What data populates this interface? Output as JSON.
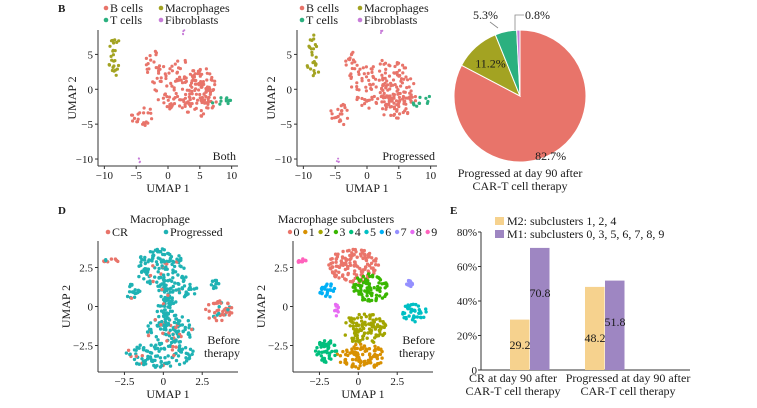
{
  "panels": {
    "B": {
      "letter": "B",
      "legend": [
        {
          "label": "B cells",
          "color": "#E8746A"
        },
        {
          "label": "T cells",
          "color": "#2BB07F"
        },
        {
          "label": "Macrophages",
          "color": "#A3A322"
        },
        {
          "label": "Fibroblasts",
          "color": "#C77CD8"
        }
      ]
    },
    "D": {
      "letter": "D",
      "title": "Macrophage",
      "legend": [
        {
          "label": "CR",
          "color": "#E8746A"
        },
        {
          "label": "Progressed",
          "color": "#1FB2B4"
        }
      ]
    },
    "D2": {
      "title": "Macrophage subclusters",
      "legend": [
        {
          "label": "0",
          "color": "#EA756A"
        },
        {
          "label": "1",
          "color": "#D89000"
        },
        {
          "label": "2",
          "color": "#A3A500"
        },
        {
          "label": "3",
          "color": "#39B600"
        },
        {
          "label": "4",
          "color": "#00BF7D"
        },
        {
          "label": "5",
          "color": "#00BFC4"
        },
        {
          "label": "6",
          "color": "#00B0F6"
        },
        {
          "label": "7",
          "color": "#9590FF"
        },
        {
          "label": "8",
          "color": "#E76BF3"
        },
        {
          "label": "9",
          "color": "#FF62BC"
        }
      ]
    },
    "E": {
      "letter": "E"
    }
  },
  "chart_data": [
    {
      "type": "scatter",
      "id": "umap-both",
      "title": "",
      "annotation": "Both",
      "xlabel": "UMAP 1",
      "ylabel": "UMAP 2",
      "xlim": [
        -11,
        11
      ],
      "ylim": [
        -11,
        8.5
      ],
      "xticks": [
        -10,
        -5,
        0,
        5,
        10
      ],
      "yticks": [
        -10,
        -5,
        0,
        5
      ],
      "xtick_labels": [
        "−10",
        "−5",
        "0",
        "5",
        "10"
      ],
      "ytick_labels": [
        "−10",
        "−5",
        "0",
        "5"
      ],
      "clusters": [
        {
          "name": "Macrophages",
          "color": "#A3A322",
          "blobs": [
            {
              "cx": -8.4,
              "cy": 6.3,
              "rx": 0.9,
              "ry": 1.5
            },
            {
              "cx": -8.5,
              "cy": 2.8,
              "rx": 1.2,
              "ry": 1.0
            },
            {
              "cx": -8.5,
              "cy": 4.5,
              "rx": 0.6,
              "ry": 1.2
            }
          ]
        },
        {
          "name": "B cells",
          "color": "#E8746A",
          "blobs": [
            {
              "cx": 2.5,
              "cy": 0.5,
              "rx": 5.0,
              "ry": 3.8
            },
            {
              "cx": -2.3,
              "cy": 3.5,
              "rx": 1.3,
              "ry": 2.0
            },
            {
              "cx": 4.5,
              "cy": -1.5,
              "rx": 3.2,
              "ry": 2.8
            },
            {
              "cx": -4.2,
              "cy": -3.8,
              "rx": 1.7,
              "ry": 1.7
            }
          ]
        },
        {
          "name": "T cells",
          "color": "#2BB07F",
          "blobs": [
            {
              "cx": 8.3,
              "cy": -1.8,
              "rx": 1.6,
              "ry": 0.8
            },
            {
              "cx": 9.5,
              "cy": -1.3,
              "rx": 0.6,
              "ry": 0.4
            }
          ]
        },
        {
          "name": "Fibroblasts",
          "color": "#C77CD8",
          "blobs": [
            {
              "cx": 2.4,
              "cy": 8.2,
              "rx": 0.25,
              "ry": 0.35
            },
            {
              "cx": -4.5,
              "cy": -10.2,
              "rx": 0.25,
              "ry": 0.4
            }
          ]
        }
      ]
    },
    {
      "type": "scatter",
      "id": "umap-progressed",
      "title": "",
      "annotation": "Progressed",
      "xlabel": "UMAP 1",
      "ylabel": "UMAP 2",
      "xlim": [
        -11,
        11
      ],
      "ylim": [
        -11,
        8.5
      ],
      "xticks": [
        -10,
        -5,
        0,
        5,
        10
      ],
      "yticks": [
        -10,
        -5,
        0,
        5
      ],
      "xtick_labels": [
        "−10",
        "−5",
        "0",
        "5",
        "10"
      ],
      "ytick_labels": [
        "−10",
        "−5",
        "0",
        "5"
      ],
      "clusters": [
        {
          "name": "Macrophages",
          "color": "#A3A322",
          "blobs": [
            {
              "cx": -8.4,
              "cy": 6.3,
              "rx": 0.9,
              "ry": 1.5
            },
            {
              "cx": -8.5,
              "cy": 2.8,
              "rx": 1.2,
              "ry": 1.0
            },
            {
              "cx": -8.5,
              "cy": 4.5,
              "rx": 0.6,
              "ry": 1.2
            }
          ]
        },
        {
          "name": "B cells",
          "color": "#E8746A",
          "blobs": [
            {
              "cx": 2.5,
              "cy": 0.5,
              "rx": 5.0,
              "ry": 3.8
            },
            {
              "cx": -2.3,
              "cy": 3.5,
              "rx": 1.3,
              "ry": 2.0
            },
            {
              "cx": 4.5,
              "cy": -1.5,
              "rx": 3.2,
              "ry": 2.8
            },
            {
              "cx": -4.2,
              "cy": -3.8,
              "rx": 1.7,
              "ry": 1.7
            }
          ]
        },
        {
          "name": "T cells",
          "color": "#2BB07F",
          "blobs": [
            {
              "cx": 8.3,
              "cy": -1.8,
              "rx": 1.6,
              "ry": 0.8
            },
            {
              "cx": 9.5,
              "cy": -1.3,
              "rx": 0.6,
              "ry": 0.4
            }
          ]
        },
        {
          "name": "Fibroblasts",
          "color": "#C77CD8",
          "blobs": [
            {
              "cx": 2.4,
              "cy": 8.2,
              "rx": 0.25,
              "ry": 0.35
            },
            {
              "cx": -4.5,
              "cy": -10.2,
              "rx": 0.25,
              "ry": 0.4
            }
          ]
        }
      ]
    },
    {
      "type": "pie",
      "id": "pie-progressed",
      "title": "Progressed at day 90 after CAR-T cell therapy",
      "caption_lines": [
        "Progressed at day 90 after",
        "CAR-T cell therapy"
      ],
      "slices": [
        {
          "label": "B cells",
          "value": 82.7,
          "text": "82.7%",
          "color": "#E8746A"
        },
        {
          "label": "Macrophages",
          "value": 11.2,
          "text": "11.2%",
          "color": "#A3A322"
        },
        {
          "label": "T cells",
          "value": 5.3,
          "text": "5.3%",
          "color": "#2BB07F"
        },
        {
          "label": "Fibroblasts",
          "value": 0.8,
          "text": "0.8%",
          "color": "#C77CD8"
        }
      ]
    },
    {
      "type": "scatter",
      "id": "umap-macrophage",
      "annotation": "Before therapy",
      "annotation_lines": [
        "Before",
        "therapy"
      ],
      "xlabel": "UMAP 1",
      "ylabel": "UMAP 2",
      "xlim": [
        -4.2,
        4.8
      ],
      "ylim": [
        -4.2,
        4.2
      ],
      "xticks": [
        -2.5,
        0,
        2.5
      ],
      "yticks": [
        -2.5,
        0,
        2.5
      ],
      "xtick_labels": [
        "−2.5",
        "0",
        "2.5"
      ],
      "ytick_labels": [
        "−2.5",
        "0",
        "2.5"
      ],
      "groups": [
        {
          "name": "Progressed",
          "color": "#1FB2B4"
        },
        {
          "name": "CR",
          "color": "#E8746A"
        }
      ]
    },
    {
      "type": "scatter",
      "id": "umap-subclusters",
      "annotation": "Before therapy",
      "annotation_lines": [
        "Before",
        "therapy"
      ],
      "xlabel": "UMAP 1",
      "ylabel": "UMAP 2",
      "xlim": [
        -4.2,
        4.8
      ],
      "ylim": [
        -4.2,
        4.2
      ],
      "xticks": [
        -2.5,
        0,
        2.5
      ],
      "yticks": [
        -2.5,
        0,
        2.5
      ],
      "xtick_labels": [
        "−2.5",
        "0",
        "2.5"
      ],
      "ytick_labels": [
        "−2.5",
        "0",
        "2.5"
      ],
      "subclusters": [
        {
          "id": "0",
          "color": "#EA756A",
          "cx": -0.3,
          "cy": 2.6,
          "rx": 1.6,
          "ry": 1.1
        },
        {
          "id": "1",
          "color": "#D89000",
          "cx": 0.2,
          "cy": -3.2,
          "rx": 1.6,
          "ry": 0.8
        },
        {
          "id": "2",
          "color": "#A3A500",
          "cx": 0.4,
          "cy": -1.4,
          "rx": 1.4,
          "ry": 1.0
        },
        {
          "id": "3",
          "color": "#39B600",
          "cx": 0.8,
          "cy": 1.2,
          "rx": 1.2,
          "ry": 0.9
        },
        {
          "id": "4",
          "color": "#00BF7D",
          "cx": -2.1,
          "cy": -2.9,
          "rx": 0.7,
          "ry": 0.8
        },
        {
          "id": "5",
          "color": "#00BFC4",
          "cx": 3.6,
          "cy": -0.4,
          "rx": 0.8,
          "ry": 0.6
        },
        {
          "id": "6",
          "color": "#00B0F6",
          "cx": -2.0,
          "cy": 1.0,
          "rx": 0.5,
          "ry": 0.5
        },
        {
          "id": "7",
          "color": "#9590FF",
          "cx": 3.3,
          "cy": 1.5,
          "rx": 0.35,
          "ry": 0.25
        },
        {
          "id": "8",
          "color": "#E76BF3",
          "cx": -1.4,
          "cy": -0.2,
          "rx": 0.15,
          "ry": 0.4
        },
        {
          "id": "9",
          "color": "#FF62BC",
          "cx": -3.6,
          "cy": 2.9,
          "rx": 0.3,
          "ry": 0.15
        }
      ]
    },
    {
      "type": "bar",
      "id": "bar-m1-m2",
      "categories": [
        "CR at day 90 after CAR-T cell therapy",
        "Progressed at day 90 after CAR-T cell therapy"
      ],
      "category_lines": [
        [
          "CR at day 90 after",
          "CAR-T cell therapy"
        ],
        [
          "Progressed at day 90 after",
          "CAR-T cell therapy"
        ]
      ],
      "series": [
        {
          "name": "M2: subclusters 1, 2, 4",
          "color": "#F6D28E",
          "values": [
            29.2,
            48.2
          ]
        },
        {
          "name": "M1: subclusters 0, 3, 5, 6, 7, 8, 9",
          "color": "#9E86C2",
          "values": [
            70.8,
            51.8
          ]
        }
      ],
      "ylim": [
        0,
        80
      ],
      "yticks": [
        0,
        20,
        40,
        60,
        80
      ],
      "ytick_labels": [
        "0",
        "20%",
        "40%",
        "60%",
        "80%"
      ],
      "legend_position": "top",
      "data_labels": [
        [
          "29.2",
          "48.2"
        ],
        [
          "70.8",
          "51.8"
        ]
      ]
    }
  ]
}
